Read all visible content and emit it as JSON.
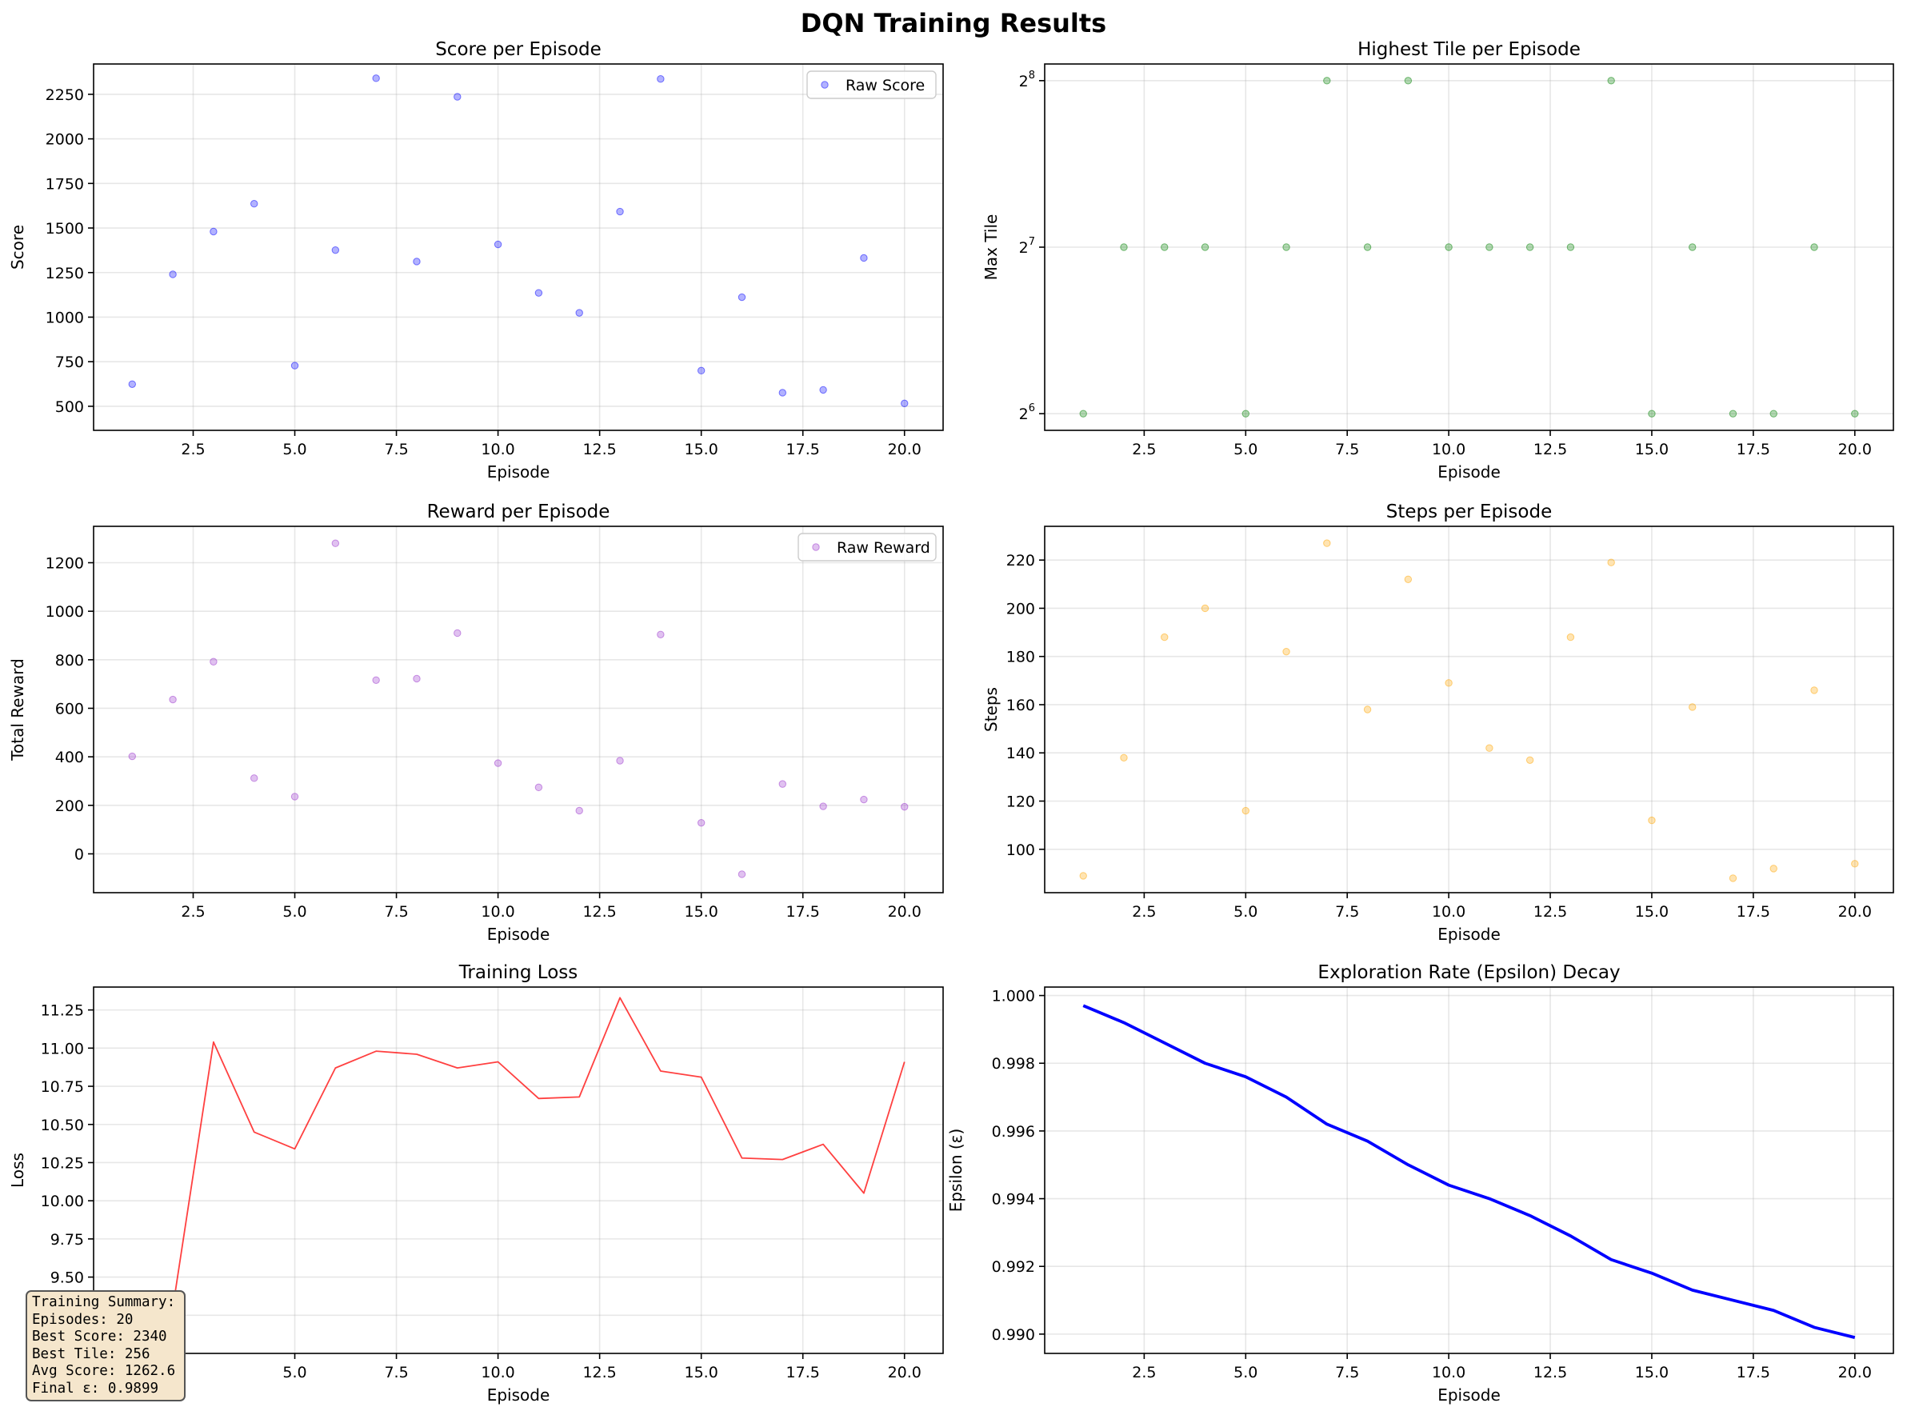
{
  "figure": {
    "suptitle": "DQN Training Results",
    "summary": {
      "lines": [
        "Training Summary:",
        "Episodes: 20",
        "Best Score: 2340",
        "Best Tile: 256",
        "Avg Score: 1262.6",
        "Final ε: 0.9899"
      ]
    }
  },
  "chart_data": [
    {
      "type": "scatter",
      "title": "Score per Episode",
      "xlabel": "Episode",
      "ylabel": "Score",
      "xlim": [
        0.05,
        20.95
      ],
      "ylim": [
        365,
        2420
      ],
      "xticks": [
        2.5,
        5.0,
        7.5,
        10.0,
        12.5,
        15.0,
        17.5,
        20.0
      ],
      "yticks": [
        500,
        750,
        1000,
        1250,
        1500,
        1750,
        2000,
        2250
      ],
      "grid": true,
      "legend": "top-right",
      "color": "#0000ff",
      "series": [
        {
          "name": "Raw Score",
          "x": [
            1,
            2,
            3,
            4,
            5,
            6,
            7,
            8,
            9,
            10,
            11,
            12,
            13,
            14,
            15,
            16,
            17,
            18,
            19,
            20
          ],
          "y": [
            624,
            1240,
            1480,
            1636,
            728,
            1376,
            2340,
            1312,
            2236,
            1408,
            1136,
            1024,
            1592,
            2336,
            700,
            1112,
            576,
            592,
            1332,
            516
          ]
        }
      ]
    },
    {
      "type": "scatter",
      "title": "Highest Tile per Episode",
      "xlabel": "Episode",
      "ylabel": "Max Tile",
      "xlim": [
        0.05,
        20.95
      ],
      "ylim": [
        5.9,
        8.1
      ],
      "yscale": "log2",
      "xticks": [
        2.5,
        5.0,
        7.5,
        10.0,
        12.5,
        15.0,
        17.5,
        20.0
      ],
      "yticks": [
        6,
        7,
        8
      ],
      "ytick_labels": [
        "2",
        "2",
        "2"
      ],
      "ytick_exponents": [
        "6",
        "7",
        "8"
      ],
      "grid": true,
      "color": "#008000",
      "series": [
        {
          "x": [
            1,
            2,
            3,
            4,
            5,
            6,
            7,
            8,
            9,
            10,
            11,
            12,
            13,
            14,
            15,
            16,
            17,
            18,
            19,
            20
          ],
          "y": [
            64,
            128,
            128,
            128,
            64,
            128,
            256,
            128,
            256,
            128,
            128,
            128,
            128,
            256,
            64,
            128,
            64,
            64,
            128,
            64
          ]
        }
      ]
    },
    {
      "type": "scatter",
      "title": "Reward per Episode",
      "xlabel": "Episode",
      "ylabel": "Total Reward",
      "xlim": [
        0.05,
        20.95
      ],
      "ylim": [
        -160,
        1350
      ],
      "xticks": [
        2.5,
        5.0,
        7.5,
        10.0,
        12.5,
        15.0,
        17.5,
        20.0
      ],
      "yticks": [
        0,
        200,
        400,
        600,
        800,
        1000,
        1200
      ],
      "grid": true,
      "legend": "top-right",
      "color": "#9932cc",
      "series": [
        {
          "name": "Raw Reward",
          "x": [
            1,
            2,
            3,
            4,
            5,
            6,
            7,
            8,
            9,
            10,
            11,
            12,
            13,
            14,
            15,
            16,
            17,
            18,
            19,
            20
          ],
          "y": [
            402,
            636,
            792,
            312,
            236,
            1280,
            716,
            722,
            910,
            374,
            274,
            178,
            384,
            904,
            128,
            -84,
            288,
            196,
            224,
            194
          ]
        }
      ]
    },
    {
      "type": "scatter",
      "title": "Steps per Episode",
      "xlabel": "Episode",
      "ylabel": "Steps",
      "xlim": [
        0.05,
        20.95
      ],
      "ylim": [
        82,
        234
      ],
      "xticks": [
        2.5,
        5.0,
        7.5,
        10.0,
        12.5,
        15.0,
        17.5,
        20.0
      ],
      "yticks": [
        100,
        120,
        140,
        160,
        180,
        200,
        220
      ],
      "grid": true,
      "color": "#ffa500",
      "series": [
        {
          "x": [
            1,
            2,
            3,
            4,
            5,
            6,
            7,
            8,
            9,
            10,
            11,
            12,
            13,
            14,
            15,
            16,
            17,
            18,
            19,
            20
          ],
          "y": [
            89,
            138,
            188,
            200,
            116,
            182,
            227,
            158,
            212,
            169,
            142,
            137,
            188,
            219,
            112,
            159,
            88,
            92,
            166,
            94
          ]
        }
      ]
    },
    {
      "type": "line",
      "title": "Training Loss",
      "xlabel": "Episode",
      "ylabel": "Loss",
      "xlim": [
        0.05,
        20.95
      ],
      "ylim": [
        9.0,
        11.4
      ],
      "xticks": [
        5.0,
        7.5,
        10.0,
        12.5,
        15.0,
        17.5,
        20.0
      ],
      "yticks": [
        9.25,
        9.5,
        9.75,
        10.0,
        10.25,
        10.5,
        10.75,
        11.0,
        11.25
      ],
      "grid": true,
      "color": "#ff0000",
      "series": [
        {
          "x": [
            2,
            3,
            4,
            5,
            6,
            7,
            8,
            9,
            10,
            11,
            12,
            13,
            14,
            15,
            16,
            17,
            18,
            19,
            20
          ],
          "y": [
            9.3,
            11.04,
            10.45,
            10.34,
            10.87,
            10.98,
            10.96,
            10.87,
            10.91,
            10.67,
            10.68,
            11.33,
            10.85,
            10.81,
            10.28,
            10.27,
            10.37,
            10.05,
            10.91
          ]
        }
      ]
    },
    {
      "type": "line",
      "title": "Exploration Rate (Epsilon) Decay",
      "xlabel": "Episode",
      "ylabel": "Epsilon (ε)",
      "xlim": [
        0.05,
        20.95
      ],
      "ylim": [
        0.98943,
        1.00025
      ],
      "xticks": [
        2.5,
        5.0,
        7.5,
        10.0,
        12.5,
        15.0,
        17.5,
        20.0
      ],
      "yticks": [
        0.99,
        0.992,
        0.994,
        0.996,
        0.998,
        1.0
      ],
      "grid": true,
      "color": "#0000ff",
      "series": [
        {
          "x": [
            1,
            2,
            3,
            4,
            5,
            6,
            7,
            8,
            9,
            10,
            11,
            12,
            13,
            14,
            15,
            16,
            17,
            18,
            19,
            20
          ],
          "y": [
            0.9997,
            0.9992,
            0.9986,
            0.998,
            0.9976,
            0.997,
            0.9962,
            0.9957,
            0.995,
            0.9944,
            0.994,
            0.9935,
            0.9929,
            0.9922,
            0.9918,
            0.9913,
            0.991,
            0.9907,
            0.9902,
            0.9899
          ]
        }
      ]
    }
  ]
}
